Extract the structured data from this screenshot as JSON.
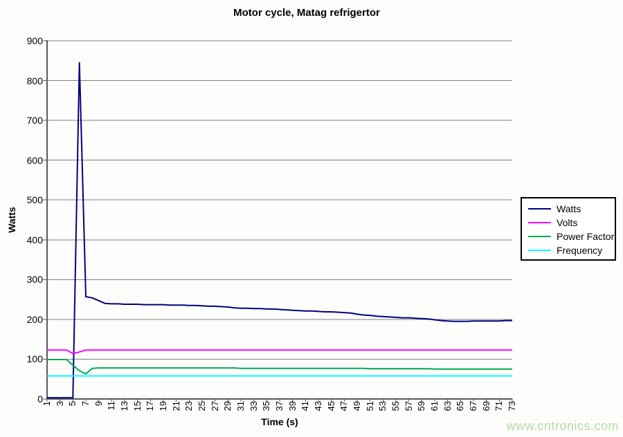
{
  "title": "Motor cycle, Matag refrigertor",
  "watermark": "www.cntronics.com",
  "colors": {
    "background": "#fdfefc",
    "gridline": "#808080",
    "axis": "#595959",
    "watermark": "#b6d9a4",
    "watts": "#000080",
    "volts": "#ff00ff",
    "power_factor": "#00aa50",
    "frequency": "#00ffff"
  },
  "chart_data": {
    "type": "line",
    "title": "Motor cycle, Matag refrigertor",
    "xlabel": "Time (s)",
    "ylabel": "Watts",
    "xlim": [
      1,
      73
    ],
    "ylim": [
      0,
      900
    ],
    "grid": true,
    "legend_position": "right",
    "y_ticks": [
      0,
      100,
      200,
      300,
      400,
      500,
      600,
      700,
      800,
      900
    ],
    "x_tick_labels": [
      1,
      3,
      5,
      7,
      9,
      11,
      13,
      15,
      17,
      19,
      21,
      23,
      25,
      27,
      29,
      31,
      33,
      35,
      37,
      39,
      41,
      43,
      45,
      47,
      49,
      51,
      53,
      55,
      57,
      59,
      61,
      63,
      65,
      67,
      69,
      71,
      73
    ],
    "x": [
      1,
      2,
      3,
      4,
      5,
      6,
      7,
      8,
      9,
      10,
      11,
      12,
      13,
      14,
      15,
      16,
      17,
      18,
      19,
      20,
      21,
      22,
      23,
      24,
      25,
      26,
      27,
      28,
      29,
      30,
      31,
      32,
      33,
      34,
      35,
      36,
      37,
      38,
      39,
      40,
      41,
      42,
      43,
      44,
      45,
      46,
      47,
      48,
      49,
      50,
      51,
      52,
      53,
      54,
      55,
      56,
      57,
      58,
      59,
      60,
      61,
      62,
      63,
      64,
      65,
      66,
      67,
      68,
      69,
      70,
      71,
      72,
      73
    ],
    "series": [
      {
        "name": "Watts",
        "color": "#000080",
        "values": [
          3,
          3,
          3,
          3,
          3,
          845,
          257,
          254,
          247,
          240,
          239,
          239,
          238,
          238,
          238,
          237,
          237,
          237,
          237,
          236,
          236,
          236,
          235,
          235,
          234,
          233,
          233,
          232,
          231,
          229,
          228,
          228,
          227,
          227,
          226,
          226,
          225,
          224,
          223,
          222,
          221,
          221,
          220,
          219,
          219,
          218,
          217,
          216,
          213,
          211,
          210,
          208,
          207,
          206,
          205,
          204,
          204,
          203,
          202,
          201,
          199,
          197,
          196,
          195,
          195,
          195,
          196,
          196,
          196,
          196,
          196,
          197,
          197
        ]
      },
      {
        "name": "Volts",
        "color": "#ff00ff",
        "values": [
          123,
          123,
          123,
          123,
          114,
          118,
          123,
          123,
          123,
          123,
          123,
          123,
          123,
          123,
          123,
          123,
          123,
          123,
          123,
          123,
          123,
          123,
          123,
          123,
          123,
          123,
          123,
          123,
          123,
          123,
          123,
          123,
          123,
          123,
          123,
          123,
          123,
          123,
          123,
          123,
          123,
          123,
          123,
          123,
          123,
          123,
          123,
          123,
          123,
          123,
          123,
          123,
          123,
          123,
          123,
          123,
          123,
          123,
          123,
          123,
          123,
          123,
          123,
          123,
          123,
          123,
          123,
          123,
          123,
          123,
          123,
          123,
          123
        ]
      },
      {
        "name": "Power Factor",
        "color": "#00aa50",
        "values": [
          99,
          99,
          99,
          99,
          85,
          71,
          63,
          77,
          78,
          78,
          78,
          78,
          78,
          78,
          78,
          78,
          78,
          78,
          78,
          78,
          78,
          78,
          78,
          78,
          78,
          78,
          78,
          78,
          78,
          78,
          77,
          77,
          77,
          77,
          77,
          77,
          77,
          77,
          77,
          77,
          77,
          77,
          77,
          77,
          77,
          77,
          77,
          77,
          77,
          77,
          76,
          76,
          76,
          76,
          76,
          76,
          76,
          76,
          76,
          76,
          75,
          75,
          75,
          75,
          75,
          75,
          75,
          75,
          75,
          75,
          75,
          75,
          75
        ]
      },
      {
        "name": "Frequency",
        "color": "#00ffff",
        "values": [
          58,
          58,
          58,
          58,
          58,
          58,
          58,
          58,
          58,
          58,
          58,
          58,
          58,
          58,
          58,
          58,
          58,
          58,
          58,
          58,
          58,
          58,
          58,
          58,
          58,
          58,
          58,
          58,
          58,
          58,
          58,
          58,
          58,
          58,
          58,
          58,
          58,
          58,
          58,
          58,
          58,
          58,
          58,
          58,
          58,
          58,
          58,
          58,
          58,
          58,
          58,
          58,
          58,
          58,
          58,
          58,
          58,
          58,
          58,
          58,
          58,
          58,
          58,
          58,
          58,
          58,
          58,
          58,
          58,
          58,
          58,
          58,
          58
        ]
      }
    ]
  }
}
